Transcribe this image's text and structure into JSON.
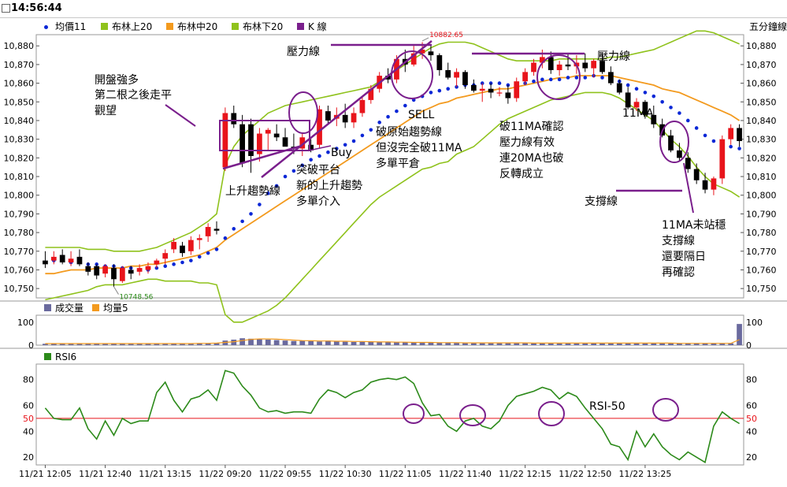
{
  "header": {
    "time": "14:56:44",
    "unit": "五分鐘線"
  },
  "colors": {
    "up": "#e8141b",
    "down": "#000000",
    "ma": "#0b27d6",
    "bb_upper": "#8fc21c",
    "bb_mid": "#f39a1e",
    "bb_lower": "#8fc21c",
    "volume": "#6a6a9e",
    "vol_ma": "#f39a1e",
    "rsi": "#2c8a1a",
    "rsi_ref": "#e8141b",
    "annot_purple": "#7a1f8c"
  },
  "chart_data": [
    {
      "type": "candlestick",
      "legend": [
        "均價11",
        "布林上20",
        "布林中20",
        "布林下20",
        "K 線"
      ],
      "y_ticks": [
        "10,750",
        "10,760",
        "10,770",
        "10,780",
        "10,790",
        "10,800",
        "10,810",
        "10,820",
        "10,830",
        "10,840",
        "10,850",
        "10,860",
        "10,870",
        "10,880"
      ],
      "y_range": [
        10745,
        10886
      ],
      "max_label": "10882.65",
      "min_label": "10748.56",
      "ohlc": [
        [
          10765,
          10770,
          10761,
          10763
        ],
        [
          10765,
          10770,
          10763,
          10767
        ],
        [
          10768,
          10771,
          10763,
          10764
        ],
        [
          10764,
          10770,
          10762,
          10766
        ],
        [
          10767,
          10771,
          10762,
          10763
        ],
        [
          10762,
          10764,
          10757,
          10759
        ],
        [
          10762,
          10763,
          10755,
          10757
        ],
        [
          10758,
          10763,
          10756,
          10762
        ],
        [
          10761,
          10763,
          10751,
          10755
        ],
        [
          10754,
          10762,
          10753,
          10761
        ],
        [
          10760,
          10762,
          10755,
          10758
        ],
        [
          10759,
          10763,
          10757,
          10761
        ],
        [
          10760,
          10764,
          10758,
          10762
        ],
        [
          10763,
          10766,
          10761,
          10765
        ],
        [
          10766,
          10771,
          10763,
          10769
        ],
        [
          10771,
          10777,
          10769,
          10775
        ],
        [
          10773,
          10775,
          10767,
          10769
        ],
        [
          10770,
          10778,
          10768,
          10776
        ],
        [
          10776,
          10779,
          10771,
          10777
        ],
        [
          10778,
          10785,
          10775,
          10783
        ],
        [
          10782,
          10786,
          10779,
          10781
        ],
        [
          10815,
          10847,
          10813,
          10844
        ],
        [
          10844,
          10848,
          10836,
          10838
        ],
        [
          10838,
          10843,
          10815,
          10817
        ],
        [
          10838,
          10841,
          10812,
          10821
        ],
        [
          10822,
          10836,
          10818,
          10833
        ],
        [
          10833,
          10836,
          10824,
          10835
        ],
        [
          10833,
          10838,
          10829,
          10831
        ],
        [
          10831,
          10836,
          10827,
          10826
        ],
        [
          10826,
          10833,
          10822,
          10825
        ],
        [
          10825,
          10833,
          10821,
          10831
        ],
        [
          10827,
          10830,
          10823,
          10824
        ],
        [
          10827,
          10848,
          10825,
          10846
        ],
        [
          10845,
          10848,
          10838,
          10840
        ],
        [
          10841,
          10847,
          10837,
          10843
        ],
        [
          10843,
          10849,
          10836,
          10839
        ],
        [
          10839,
          10847,
          10836,
          10844
        ],
        [
          10844,
          10853,
          10842,
          10851
        ],
        [
          10851,
          10859,
          10849,
          10857
        ],
        [
          10857,
          10866,
          10855,
          10864
        ],
        [
          10864,
          10868,
          10860,
          10862
        ],
        [
          10862,
          10875,
          10860,
          10873
        ],
        [
          10873,
          10878,
          10866,
          10870
        ],
        [
          10870,
          10880,
          10869,
          10876
        ],
        [
          10876,
          10882,
          10873,
          10878
        ],
        [
          10877,
          10880,
          10872,
          10875
        ],
        [
          10875,
          10876,
          10864,
          10867
        ],
        [
          10867,
          10871,
          10862,
          10863
        ],
        [
          10863,
          10868,
          10858,
          10866
        ],
        [
          10866,
          10867,
          10857,
          10859
        ],
        [
          10859,
          10862,
          10855,
          10856
        ],
        [
          10856,
          10860,
          10850,
          10857
        ],
        [
          10857,
          10860,
          10852,
          10855
        ],
        [
          10855,
          10858,
          10853,
          10855
        ],
        [
          10855,
          10859,
          10849,
          10852
        ],
        [
          10852,
          10863,
          10850,
          10861
        ],
        [
          10861,
          10868,
          10859,
          10866
        ],
        [
          10866,
          10873,
          10864,
          10871
        ],
        [
          10871,
          10878,
          10868,
          10874
        ],
        [
          10874,
          10877,
          10865,
          10867
        ],
        [
          10867,
          10872,
          10864,
          10870
        ],
        [
          10870,
          10876,
          10867,
          10869
        ],
        [
          10869,
          10875,
          10865,
          10871
        ],
        [
          10871,
          10876,
          10866,
          10868
        ],
        [
          10868,
          10873,
          10863,
          10872
        ],
        [
          10872,
          10876,
          10865,
          10866
        ],
        [
          10866,
          10869,
          10859,
          10860
        ],
        [
          10860,
          10862,
          10854,
          10855
        ],
        [
          10855,
          10858,
          10846,
          10847
        ],
        [
          10847,
          10852,
          10845,
          10850
        ],
        [
          10850,
          10851,
          10841,
          10843
        ],
        [
          10843,
          10848,
          10836,
          10838
        ],
        [
          10838,
          10841,
          10831,
          10832
        ],
        [
          10832,
          10835,
          10823,
          10824
        ],
        [
          10824,
          10828,
          10818,
          10820
        ],
        [
          10820,
          10823,
          10812,
          10814
        ],
        [
          10814,
          10817,
          10806,
          10808
        ],
        [
          10808,
          10812,
          10801,
          10803
        ],
        [
          10803,
          10810,
          10800,
          10809
        ],
        [
          10809,
          10832,
          10806,
          10830
        ],
        [
          10830,
          10838,
          10827,
          10836
        ],
        [
          10836,
          10838,
          10826,
          10829
        ]
      ],
      "ma11": [
        10764,
        10765,
        10765,
        10764,
        10764,
        10763,
        10763,
        10762,
        10762,
        10761,
        10761,
        10760,
        10760,
        10761,
        10762,
        10763,
        10764,
        10765,
        10767,
        10769,
        10771,
        10777,
        10782,
        10786,
        10790,
        10795,
        10801,
        10805,
        10810,
        10813,
        10816,
        10819,
        10821,
        10823,
        10825,
        10827,
        10829,
        10832,
        10835,
        10839,
        10842,
        10845,
        10848,
        10851,
        10853,
        10855,
        10856,
        10857,
        10858,
        10859,
        10859,
        10860,
        10860,
        10860,
        10859,
        10859,
        10860,
        10861,
        10862,
        10862,
        10862,
        10863,
        10863,
        10863,
        10864,
        10863,
        10862,
        10861,
        10859,
        10857,
        10855,
        10853,
        10850,
        10847,
        10844,
        10840,
        10836,
        10832,
        10829,
        10827,
        10826,
        10825
      ],
      "bb_mid": [
        10758,
        10758,
        10759,
        10760,
        10760,
        10760,
        10761,
        10761,
        10761,
        10761,
        10762,
        10762,
        10763,
        10763,
        10764,
        10765,
        10766,
        10767,
        10768,
        10770,
        10772,
        10776,
        10779,
        10782,
        10785,
        10788,
        10791,
        10794,
        10797,
        10800,
        10803,
        10806,
        10809,
        10812,
        10815,
        10818,
        10821,
        10824,
        10827,
        10830,
        10833,
        10836,
        10839,
        10842,
        10845,
        10847,
        10849,
        10850,
        10852,
        10853,
        10854,
        10855,
        10856,
        10857,
        10857,
        10858,
        10859,
        10860,
        10861,
        10862,
        10863,
        10863,
        10864,
        10864,
        10864,
        10864,
        10864,
        10863,
        10862,
        10861,
        10860,
        10859,
        10857,
        10856,
        10855,
        10853,
        10851,
        10849,
        10847,
        10845,
        10843,
        10840
      ],
      "bb_upper": [
        10772,
        10772,
        10772,
        10772,
        10772,
        10771,
        10771,
        10771,
        10770,
        10770,
        10770,
        10770,
        10771,
        10772,
        10774,
        10776,
        10778,
        10780,
        10783,
        10786,
        10790,
        10816,
        10826,
        10832,
        10836,
        10840,
        10844,
        10846,
        10848,
        10849,
        10850,
        10851,
        10852,
        10853,
        10854,
        10855,
        10856,
        10857,
        10858,
        10861,
        10864,
        10867,
        10870,
        10873,
        10876,
        10879,
        10881,
        10882,
        10882,
        10882,
        10881,
        10879,
        10877,
        10875,
        10873,
        10872,
        10872,
        10872,
        10872,
        10872,
        10873,
        10873,
        10873,
        10873,
        10873,
        10873,
        10874,
        10874,
        10875,
        10876,
        10877,
        10878,
        10880,
        10882,
        10884,
        10886,
        10888,
        10888,
        10887,
        10885,
        10883,
        10881
      ],
      "bb_lower": [
        10744,
        10745,
        10746,
        10747,
        10748,
        10749,
        10751,
        10752,
        10752,
        10752,
        10753,
        10754,
        10755,
        10755,
        10754,
        10754,
        10754,
        10754,
        10753,
        10753,
        10752,
        10736,
        10732,
        10732,
        10734,
        10736,
        10738,
        10741,
        10745,
        10750,
        10755,
        10760,
        10765,
        10770,
        10775,
        10780,
        10785,
        10790,
        10795,
        10799,
        10802,
        10805,
        10808,
        10811,
        10814,
        10815,
        10817,
        10818,
        10822,
        10824,
        10826,
        10830,
        10834,
        10838,
        10841,
        10843,
        10845,
        10847,
        10849,
        10851,
        10852,
        10853,
        10854,
        10855,
        10855,
        10855,
        10854,
        10852,
        10849,
        10846,
        10843,
        10840,
        10835,
        10830,
        10826,
        10821,
        10815,
        10810,
        10806,
        10804,
        10802,
        10799
      ],
      "annotations": [
        "開盤強多",
        "第二根之後走平",
        "觀望",
        "上升趨勢線",
        "Buy",
        "突破平台",
        "新的上升趨勢",
        "多單介入",
        "壓力線",
        "SELL",
        "破原始趨勢線",
        "但沒完全破11MA",
        "多單平倉",
        "壓力線",
        "11MA",
        "破11MA確認",
        "壓力線有效",
        "連20MA也破",
        "反轉成立",
        "支撐線",
        "11MA未站穩",
        "支撐線",
        "還要隔日",
        "再確認"
      ]
    },
    {
      "type": "bar",
      "legend": [
        "成交量",
        "均量5"
      ],
      "y_ticks": [
        "0",
        "100"
      ],
      "y_range": [
        0,
        130
      ],
      "values": [
        6,
        6,
        6,
        6,
        6,
        6,
        6,
        6,
        6,
        6,
        6,
        6,
        7,
        7,
        7,
        7,
        7,
        8,
        8,
        8,
        9,
        20,
        24,
        30,
        28,
        26,
        24,
        22,
        20,
        18,
        20,
        18,
        16,
        20,
        16,
        15,
        14,
        15,
        14,
        13,
        13,
        12,
        12,
        12,
        11,
        11,
        11,
        11,
        10,
        10,
        10,
        10,
        10,
        10,
        10,
        9,
        9,
        9,
        9,
        9,
        9,
        9,
        9,
        9,
        9,
        9,
        9,
        9,
        9,
        9,
        9,
        9,
        8,
        8,
        8,
        8,
        8,
        8,
        8,
        8,
        8,
        92
      ],
      "ma5": [
        7,
        7,
        7,
        7,
        7,
        7,
        7,
        7,
        7,
        7,
        7,
        7,
        7,
        7,
        7,
        7,
        7,
        7,
        8,
        8,
        9,
        12,
        15,
        20,
        25,
        27,
        27,
        26,
        24,
        22,
        20,
        19,
        18,
        18,
        17,
        17,
        16,
        16,
        15,
        14,
        14,
        13,
        13,
        12,
        12,
        12,
        11,
        11,
        11,
        10,
        10,
        10,
        10,
        10,
        10,
        10,
        10,
        9,
        9,
        9,
        9,
        9,
        9,
        9,
        9,
        9,
        9,
        9,
        9,
        9,
        9,
        9,
        9,
        9,
        8,
        8,
        8,
        8,
        8,
        8,
        8,
        24
      ]
    },
    {
      "type": "line",
      "legend": [
        "RSI6"
      ],
      "y_ticks": [
        "20",
        "40",
        "50",
        "60",
        "80"
      ],
      "y_range": [
        14,
        92
      ],
      "reference_line": 50,
      "reference_label": "RSI-50",
      "values": [
        58,
        50,
        49,
        49,
        58,
        42,
        34,
        48,
        37,
        50,
        46,
        48,
        48,
        70,
        78,
        64,
        55,
        65,
        67,
        72,
        64,
        87,
        85,
        75,
        68,
        58,
        55,
        56,
        54,
        55,
        55,
        54,
        65,
        72,
        70,
        66,
        70,
        72,
        78,
        80,
        81,
        80,
        82,
        77,
        62,
        52,
        53,
        44,
        40,
        48,
        50,
        44,
        42,
        48,
        60,
        67,
        69,
        71,
        74,
        72,
        65,
        70,
        67,
        58,
        50,
        42,
        30,
        28,
        18,
        40,
        28,
        38,
        28,
        22,
        18,
        24,
        20,
        16,
        44,
        55,
        50,
        46
      ],
      "x_labels": [
        "11/21 12:05",
        "11/21 12:40",
        "11/21 13:15",
        "11/22 09:20",
        "11/22 09:55",
        "11/22 10:30",
        "11/22 11:05",
        "11/22 11:40",
        "11/22 12:15",
        "11/22 12:50",
        "11/22 13:25"
      ]
    }
  ]
}
